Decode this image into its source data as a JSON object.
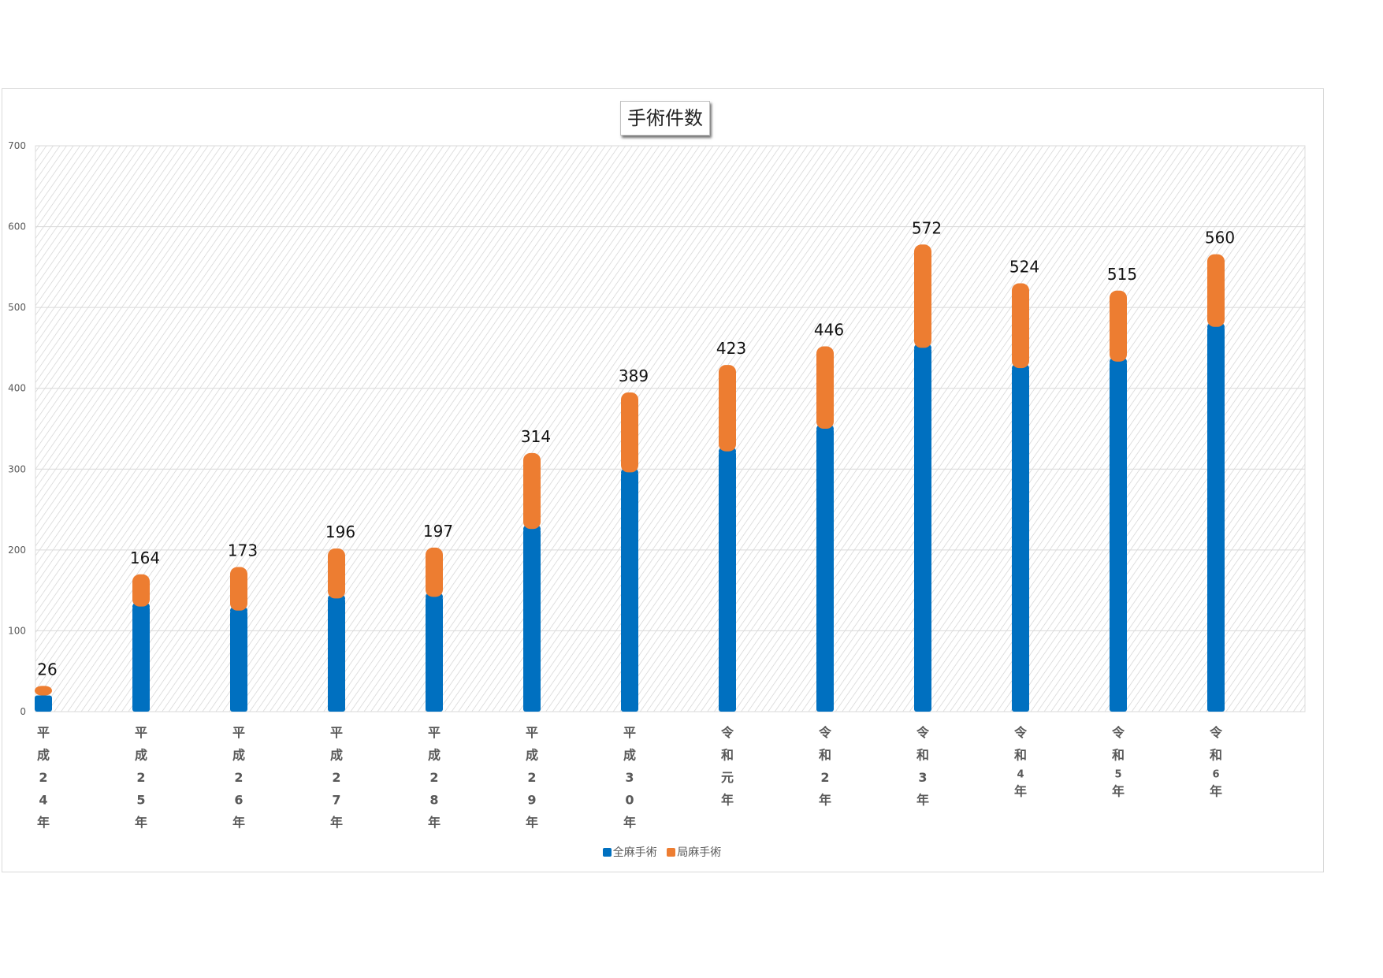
{
  "chart_data": {
    "type": "bar",
    "stacked": true,
    "title": "手術件数",
    "categories": [
      "平成24年",
      "平成25年",
      "平成26年",
      "平成27年",
      "平成28年",
      "平成29年",
      "平成30年",
      "令和元年",
      "令和2年",
      "令和3年",
      "令和4年",
      "令和5年",
      "令和6年"
    ],
    "category_labels": [
      [
        "平",
        "成",
        "2",
        "4",
        "年"
      ],
      [
        "平",
        "成",
        "2",
        "5",
        "年"
      ],
      [
        "平",
        "成",
        "2",
        "6",
        "年"
      ],
      [
        "平",
        "成",
        "2",
        "7",
        "年"
      ],
      [
        "平",
        "成",
        "2",
        "8",
        "年"
      ],
      [
        "平",
        "成",
        "2",
        "9",
        "年"
      ],
      [
        "平",
        "成",
        "3",
        "0",
        "年"
      ],
      [
        "令",
        "和",
        "元",
        "年"
      ],
      [
        "令",
        "和",
        "2",
        "年"
      ],
      [
        "令",
        "和",
        "3",
        "年"
      ],
      [
        "令",
        "和",
        "4",
        "年"
      ],
      [
        "令",
        "和",
        "5",
        "年"
      ],
      [
        "令",
        "和",
        "6",
        "年"
      ]
    ],
    "series": [
      {
        "name": "全麻手術",
        "color": "#0070c0",
        "values": [
          20,
          130,
          125,
          140,
          142,
          226,
          296,
          322,
          350,
          450,
          425,
          433,
          476
        ]
      },
      {
        "name": "局麻手術",
        "color": "#ed7d31",
        "values": [
          6,
          34,
          48,
          56,
          55,
          88,
          93,
          101,
          96,
          122,
          99,
          82,
          84
        ]
      }
    ],
    "totals": [
      26,
      164,
      173,
      196,
      197,
      314,
      389,
      423,
      446,
      572,
      524,
      515,
      560
    ],
    "ylim": [
      0,
      700
    ],
    "yticks": [
      0,
      100,
      200,
      300,
      400,
      500,
      600,
      700
    ],
    "grid": true,
    "legend_position": "bottom"
  }
}
